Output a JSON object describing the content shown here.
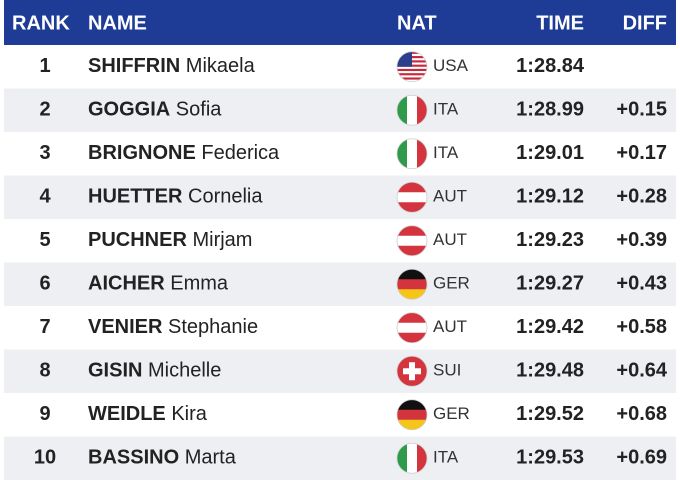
{
  "table": {
    "headers": [
      "RANK",
      "NAME",
      "NAT",
      "TIME",
      "DIFF"
    ],
    "rows": [
      {
        "rank": 1,
        "surname": "SHIFFRIN",
        "given": "Mikaela",
        "nat": "USA",
        "time": "1:28.84"
      },
      {
        "rank": 2,
        "surname": "GOGGIA",
        "given": "Sofia",
        "nat": "ITA",
        "time": "1:28.99",
        "diff": "+0.15"
      },
      {
        "rank": 3,
        "surname": "BRIGNONE",
        "given": "Federica",
        "nat": "ITA",
        "time": "1:29.01",
        "diff": "+0.17"
      },
      {
        "rank": 4,
        "surname": "HUETTER",
        "given": "Cornelia",
        "nat": "AUT",
        "time": "1:29.12",
        "diff": "+0.28"
      },
      {
        "rank": 5,
        "surname": "PUCHNER",
        "given": "Mirjam",
        "nat": "AUT",
        "time": "1:29.23",
        "diff": "+0.39"
      },
      {
        "rank": 6,
        "surname": "AICHER",
        "given": "Emma",
        "nat": "GER",
        "time": "1:29.27",
        "diff": "+0.43"
      },
      {
        "rank": 7,
        "surname": "VENIER",
        "given": "Stephanie",
        "nat": "AUT",
        "time": "1:29.42",
        "diff": "+0.58"
      },
      {
        "rank": 8,
        "surname": "GISIN",
        "given": "Michelle",
        "nat": "SUI",
        "time": "1:29.48",
        "diff": "+0.64"
      },
      {
        "rank": 9,
        "surname": "WEIDLE",
        "given": "Kira",
        "nat": "GER",
        "time": "1:29.52",
        "diff": "+0.68"
      },
      {
        "rank": 10,
        "surname": "BASSINO",
        "given": "Marta",
        "nat": "ITA",
        "time": "1:29.53",
        "diff": "+0.69"
      }
    ]
  }
}
